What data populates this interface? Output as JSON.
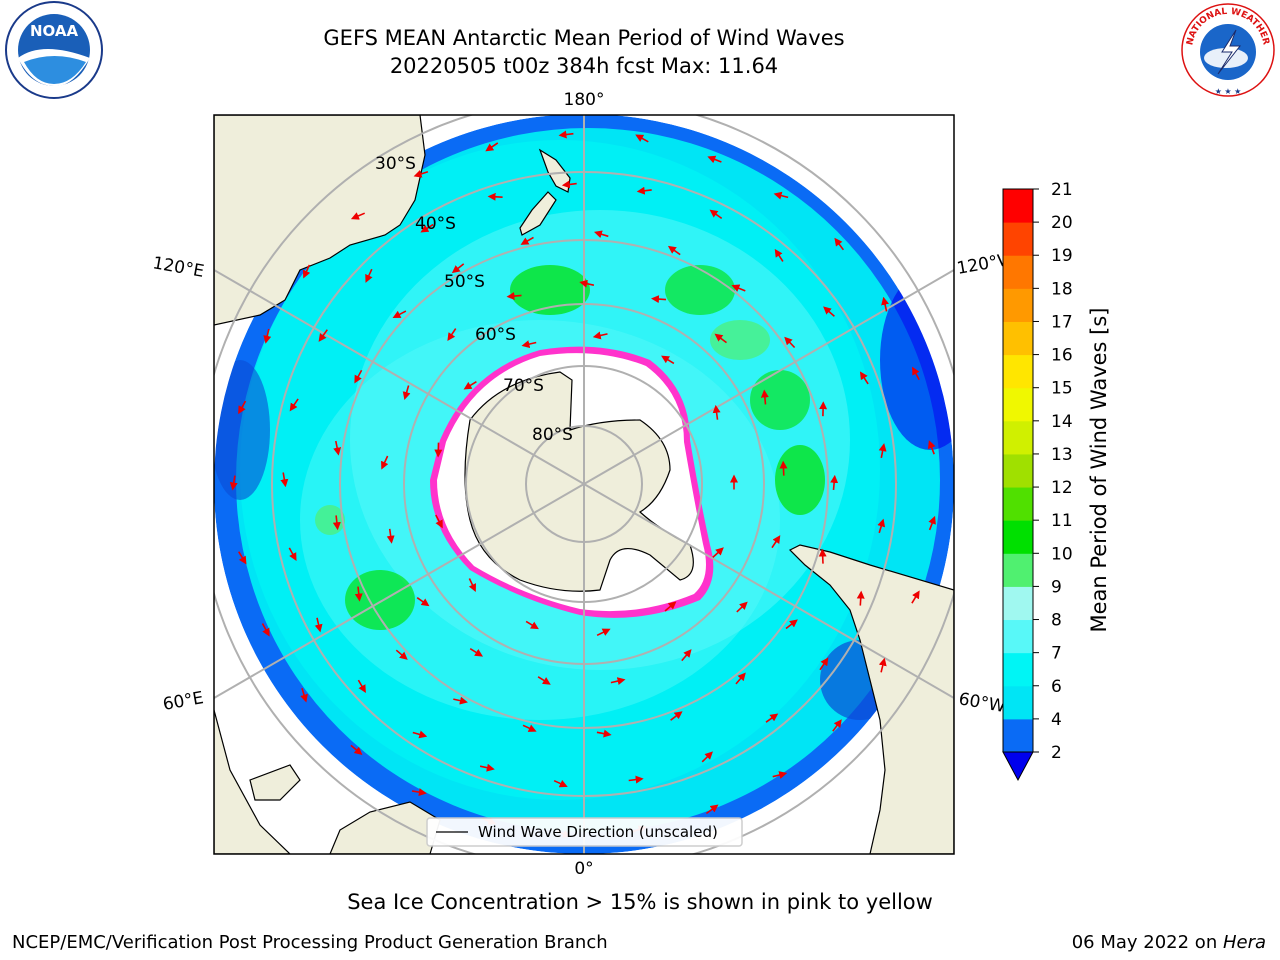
{
  "title": {
    "line1": "GEFS MEAN Antarctic Mean Period of Wind Waves",
    "line2": "20220505 t00z 384h fcst   Max: 11.64"
  },
  "map": {
    "longitude_labels": {
      "top": "180°",
      "bottom": "0°",
      "left_upper": "120°E",
      "left_lower": "60°E",
      "right_upper": "120°W",
      "right_lower": "60°W"
    },
    "latitude_labels": [
      "30°S",
      "40°S",
      "50°S",
      "60°S",
      "70°S",
      "80°S"
    ],
    "legend_label": "Wind Wave Direction (unscaled)",
    "colors": {
      "land": "#efeedb",
      "ocean_low": "#0a6bf5",
      "ocean_mid": "#00e5f5",
      "ocean_high": "#58f8f8",
      "ice": "#ffffff",
      "ice_edge": "#ff33cc",
      "arrow": "#ee0000",
      "grid": "#b0b0b0"
    }
  },
  "colorbar": {
    "label": "Mean Period of Wind Waves [s]",
    "ticks": [
      "2",
      "4",
      "6",
      "7",
      "8",
      "9",
      "10",
      "11",
      "12",
      "13",
      "14",
      "15",
      "16",
      "17",
      "18",
      "19",
      "20",
      "21"
    ],
    "colors": [
      "#0a6bf5",
      "#00e5f5",
      "#00f5f5",
      "#58f8f8",
      "#a0f8f0",
      "#50f070",
      "#00e000",
      "#50e000",
      "#a0e000",
      "#d0f000",
      "#f0f800",
      "#ffe600",
      "#ffc000",
      "#ff9900",
      "#ff7700",
      "#ff4400",
      "#ff0000"
    ],
    "under_color": "#0000ee"
  },
  "caption": "Sea Ice Concentration > 15% is shown in pink to yellow",
  "footer": {
    "left": "NCEP/EMC/Verification Post Processing Product Generation Branch",
    "right_date": "06 May 2022 on ",
    "right_system": "Hera"
  },
  "logos": {
    "left": "NOAA",
    "right": "NATIONAL WEATHER SERVICE"
  }
}
